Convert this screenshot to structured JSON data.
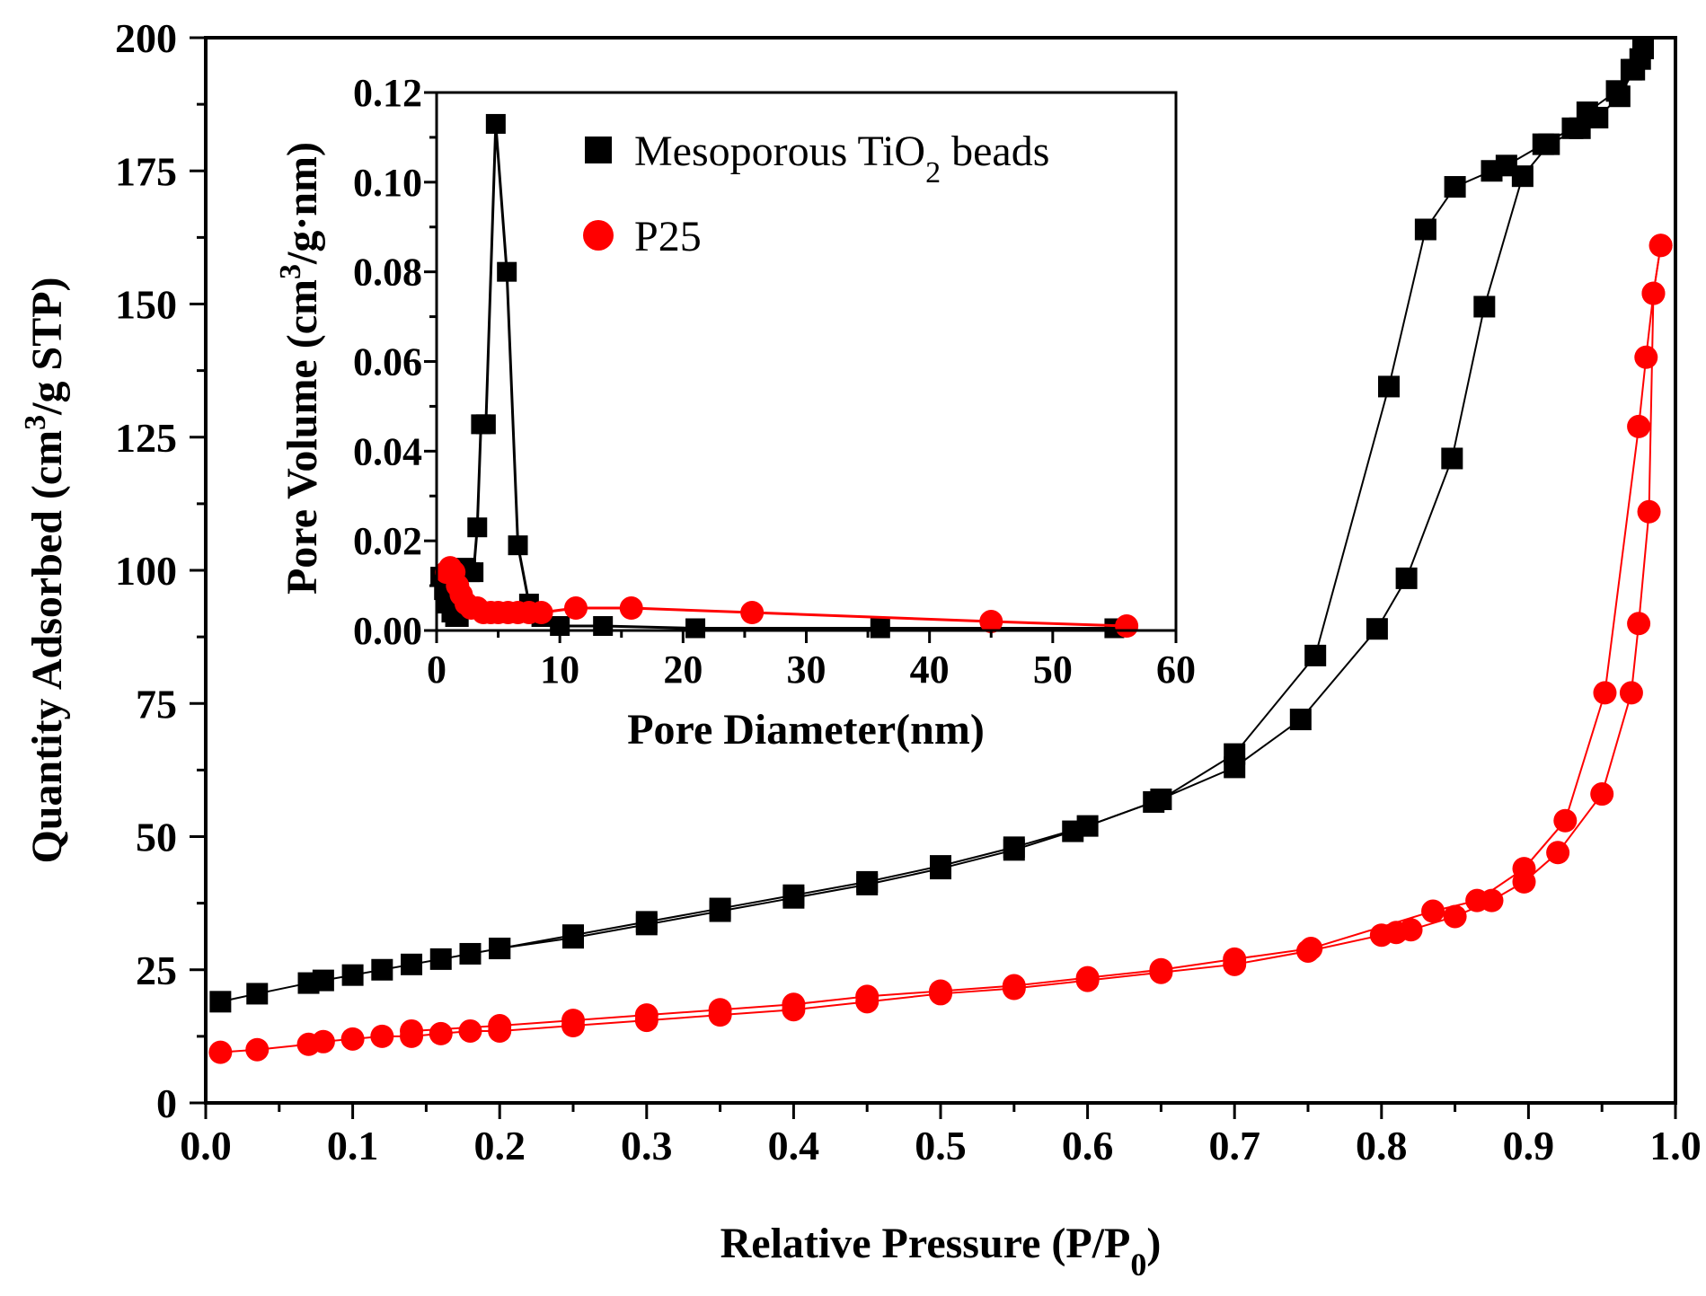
{
  "chart_data": [
    {
      "type": "scatter",
      "id": "main",
      "xlabel": "Relative Pressure (P/P0)",
      "xlabel_parts": {
        "text": "Relative Pressure (P/P",
        "sub": "0",
        "tail": ")"
      },
      "ylabel": "Quantity Adsorbed (cm3/g STP)",
      "ylabel_parts": {
        "text": "Quantity Adsorbed (cm",
        "sup": "3",
        "tail": "/g STP)"
      },
      "xlim": [
        0.0,
        1.0
      ],
      "ylim": [
        0,
        200
      ],
      "xticks": [
        "0.0",
        "0.1",
        "0.2",
        "0.3",
        "0.4",
        "0.5",
        "0.6",
        "0.7",
        "0.8",
        "0.9",
        "1.0"
      ],
      "yticks": [
        "0",
        "25",
        "50",
        "75",
        "100",
        "125",
        "150",
        "175",
        "200"
      ],
      "grid": false,
      "series": [
        {
          "name": "Mesoporous TiO2 beads adsorption",
          "color": "#000000",
          "marker": "square",
          "x": [
            0.01,
            0.035,
            0.07,
            0.08,
            0.1,
            0.12,
            0.14,
            0.16,
            0.18,
            0.2,
            0.25,
            0.3,
            0.35,
            0.4,
            0.45,
            0.5,
            0.55,
            0.59,
            0.645,
            0.7,
            0.745,
            0.797,
            0.817,
            0.848,
            0.87,
            0.896,
            0.914,
            0.935,
            0.947,
            0.962,
            0.972,
            0.976,
            0.978
          ],
          "y": [
            19,
            20.5,
            22.5,
            23,
            24,
            25,
            26,
            27,
            28,
            29,
            31,
            33.5,
            36,
            38.5,
            41,
            44,
            47.5,
            51,
            56.5,
            63,
            72,
            89,
            98.5,
            121,
            149.5,
            174,
            180,
            183,
            185,
            189,
            194,
            196,
            198
          ]
        },
        {
          "name": "Mesoporous TiO2 beads desorption",
          "color": "#000000",
          "marker": "square",
          "x": [
            0.978,
            0.97,
            0.96,
            0.94,
            0.93,
            0.91,
            0.885,
            0.875,
            0.85,
            0.83,
            0.805,
            0.755,
            0.7,
            0.65,
            0.6,
            0.55,
            0.5,
            0.45,
            0.4,
            0.35,
            0.3,
            0.25,
            0.2
          ],
          "y": [
            198,
            194,
            190,
            186,
            183,
            180,
            176,
            175,
            172,
            164,
            134.5,
            84,
            65.5,
            57,
            52,
            48,
            44.5,
            41.5,
            39,
            36.5,
            34,
            31.5,
            29
          ]
        },
        {
          "name": "P25 adsorption",
          "color": "#ff0000",
          "marker": "circle",
          "x": [
            0.01,
            0.035,
            0.07,
            0.08,
            0.1,
            0.12,
            0.14,
            0.16,
            0.18,
            0.2,
            0.25,
            0.3,
            0.35,
            0.4,
            0.45,
            0.5,
            0.55,
            0.6,
            0.65,
            0.7,
            0.75,
            0.8,
            0.81,
            0.82,
            0.85,
            0.875,
            0.897,
            0.92,
            0.95,
            0.97,
            0.975,
            0.982,
            0.985,
            0.99
          ],
          "y": [
            9.5,
            10,
            11,
            11.5,
            12,
            12.5,
            12.5,
            13,
            13.5,
            13.5,
            14.5,
            15.5,
            16.5,
            17.5,
            19,
            20.5,
            21.5,
            23,
            24.5,
            26,
            28.5,
            31.5,
            32,
            32.5,
            35,
            38,
            41.5,
            47,
            58,
            77,
            90,
            111,
            152,
            161
          ]
        },
        {
          "name": "P25 desorption",
          "color": "#ff0000",
          "marker": "circle",
          "x": [
            0.99,
            0.985,
            0.98,
            0.975,
            0.952,
            0.925,
            0.897,
            0.865,
            0.835,
            0.752,
            0.7,
            0.65,
            0.6,
            0.55,
            0.5,
            0.45,
            0.4,
            0.35,
            0.3,
            0.25,
            0.2,
            0.14
          ],
          "y": [
            161,
            152,
            140,
            127,
            77,
            53,
            44,
            38,
            36,
            29,
            27,
            25,
            23.5,
            22,
            21,
            20,
            18.5,
            17.5,
            16.5,
            15.5,
            14.5,
            13.5
          ]
        }
      ],
      "legend": [
        {
          "label_main": "Mesoporous TiO",
          "label_sub": "2",
          "label_tail": " beads",
          "color": "#000000",
          "marker": "square"
        },
        {
          "label_main": "P25",
          "label_sub": "",
          "label_tail": "",
          "color": "#ff0000",
          "marker": "circle"
        }
      ],
      "legend_position": "inset top-right"
    },
    {
      "type": "line",
      "id": "inset",
      "xlabel": "Pore Diameter(nm)",
      "ylabel": "Pore Volume (cm3/g·nm)",
      "ylabel_parts": {
        "text": "Pore Volume (cm",
        "sup": "3",
        "tail": "/g·nm)"
      },
      "xlim": [
        0,
        60
      ],
      "ylim": [
        0,
        0.12
      ],
      "xticks": [
        "0",
        "10",
        "20",
        "30",
        "40",
        "50",
        "60"
      ],
      "yticks": [
        "0.00",
        "0.02",
        "0.04",
        "0.06",
        "0.08",
        "0.10",
        "0.12"
      ],
      "grid": false,
      "series": [
        {
          "name": "Mesoporous TiO2 beads",
          "color": "#000000",
          "marker": "square",
          "x": [
            0.3,
            0.6,
            0.9,
            1.2,
            1.5,
            1.8,
            2.1,
            2.4,
            2.7,
            3.0,
            3.3,
            3.6,
            4.0,
            4.8,
            5.7,
            6.6,
            7.5,
            8.5,
            10,
            13.5,
            21,
            36,
            55
          ],
          "y": [
            0.012,
            0.009,
            0.006,
            0.004,
            0.003,
            0.003,
            0.006,
            0.014,
            0.013,
            0.013,
            0.023,
            0.046,
            0.046,
            0.113,
            0.08,
            0.019,
            0.006,
            0.003,
            0.001,
            0.001,
            0.0005,
            0.0005,
            0.0005
          ]
        },
        {
          "name": "P25",
          "color": "#ff0000",
          "marker": "circle",
          "x": [
            0.8,
            1.1,
            1.4,
            1.7,
            2.0,
            2.4,
            2.8,
            3.3,
            3.8,
            4.4,
            5.0,
            5.8,
            6.6,
            7.5,
            8.5,
            11.3,
            15.8,
            25.6,
            45,
            56
          ],
          "y": [
            0.013,
            0.014,
            0.013,
            0.01,
            0.008,
            0.006,
            0.005,
            0.005,
            0.004,
            0.004,
            0.004,
            0.004,
            0.004,
            0.004,
            0.004,
            0.005,
            0.005,
            0.004,
            0.002,
            0.001
          ]
        }
      ]
    }
  ]
}
